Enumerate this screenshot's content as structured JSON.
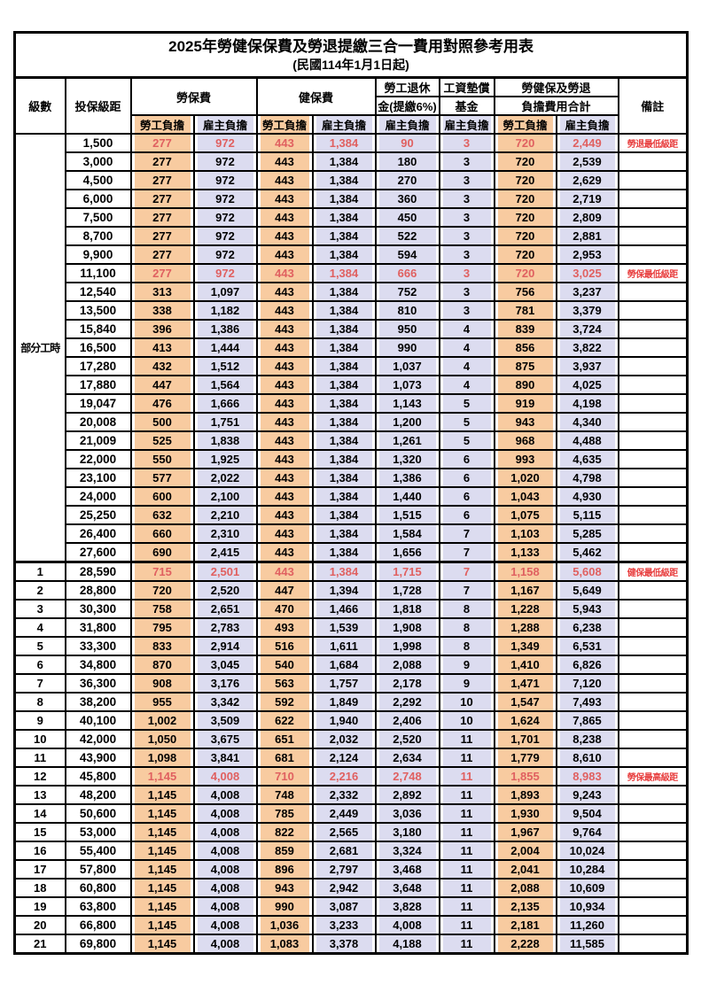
{
  "title": "2025年勞健保保費及勞退提繳三合一費用對照參考用表",
  "subtitle": "(民國114年1月1日起)",
  "colors": {
    "employee_fill": "#F8CBA0",
    "employer_fill": "#DCDCF0",
    "highlight_text": "#E06060",
    "note_text": "#E84040",
    "border": "#000000"
  },
  "header": {
    "level": "級數",
    "bracket": "投保級距",
    "labor_insurance": "勞保費",
    "health_insurance": "健保費",
    "pension_line1": "勞工退休",
    "pension_line2": "金(提繳6%)",
    "wage_fund_line1": "工資墊償",
    "wage_fund_line2": "基金",
    "total_line1": "勞健保及勞退",
    "total_line2": "負擔費用合計",
    "note": "備註",
    "employee_share": "勞工負擔",
    "employer_share": "雇主負擔"
  },
  "part_time": {
    "label": "部分工時",
    "span": 23
  },
  "columns": [
    {
      "key": "labor-insurance-employee",
      "type": "employee"
    },
    {
      "key": "labor-insurance-employer",
      "type": "employer"
    },
    {
      "key": "health-insurance-employee",
      "type": "employee"
    },
    {
      "key": "health-insurance-employer",
      "type": "employer"
    },
    {
      "key": "pension-employer",
      "type": "employer"
    },
    {
      "key": "wage-fund-employer",
      "type": "employer"
    },
    {
      "key": "total-employee",
      "type": "employee"
    },
    {
      "key": "total-employer",
      "type": "employer"
    }
  ],
  "rows": [
    {
      "level": "",
      "bracket": "1,500",
      "values": [
        "277",
        "972",
        "443",
        "1,384",
        "90",
        "3",
        "720",
        "2,449"
      ],
      "note": "勞退最低級距",
      "hl": true
    },
    {
      "level": "",
      "bracket": "3,000",
      "values": [
        "277",
        "972",
        "443",
        "1,384",
        "180",
        "3",
        "720",
        "2,539"
      ],
      "note": "",
      "hl": false
    },
    {
      "level": "",
      "bracket": "4,500",
      "values": [
        "277",
        "972",
        "443",
        "1,384",
        "270",
        "3",
        "720",
        "2,629"
      ],
      "note": "",
      "hl": false
    },
    {
      "level": "",
      "bracket": "6,000",
      "values": [
        "277",
        "972",
        "443",
        "1,384",
        "360",
        "3",
        "720",
        "2,719"
      ],
      "note": "",
      "hl": false
    },
    {
      "level": "",
      "bracket": "7,500",
      "values": [
        "277",
        "972",
        "443",
        "1,384",
        "450",
        "3",
        "720",
        "2,809"
      ],
      "note": "",
      "hl": false
    },
    {
      "level": "",
      "bracket": "8,700",
      "values": [
        "277",
        "972",
        "443",
        "1,384",
        "522",
        "3",
        "720",
        "2,881"
      ],
      "note": "",
      "hl": false
    },
    {
      "level": "",
      "bracket": "9,900",
      "values": [
        "277",
        "972",
        "443",
        "1,384",
        "594",
        "3",
        "720",
        "2,953"
      ],
      "note": "",
      "hl": false
    },
    {
      "level": "",
      "bracket": "11,100",
      "values": [
        "277",
        "972",
        "443",
        "1,384",
        "666",
        "3",
        "720",
        "3,025"
      ],
      "note": "勞保最低級距",
      "hl": true
    },
    {
      "level": "",
      "bracket": "12,540",
      "values": [
        "313",
        "1,097",
        "443",
        "1,384",
        "752",
        "3",
        "756",
        "3,237"
      ],
      "note": "",
      "hl": false
    },
    {
      "level": "",
      "bracket": "13,500",
      "values": [
        "338",
        "1,182",
        "443",
        "1,384",
        "810",
        "3",
        "781",
        "3,379"
      ],
      "note": "",
      "hl": false
    },
    {
      "level": "",
      "bracket": "15,840",
      "values": [
        "396",
        "1,386",
        "443",
        "1,384",
        "950",
        "4",
        "839",
        "3,724"
      ],
      "note": "",
      "hl": false
    },
    {
      "level": "",
      "bracket": "16,500",
      "values": [
        "413",
        "1,444",
        "443",
        "1,384",
        "990",
        "4",
        "856",
        "3,822"
      ],
      "note": "",
      "hl": false
    },
    {
      "level": "",
      "bracket": "17,280",
      "values": [
        "432",
        "1,512",
        "443",
        "1,384",
        "1,037",
        "4",
        "875",
        "3,937"
      ],
      "note": "",
      "hl": false
    },
    {
      "level": "",
      "bracket": "17,880",
      "values": [
        "447",
        "1,564",
        "443",
        "1,384",
        "1,073",
        "4",
        "890",
        "4,025"
      ],
      "note": "",
      "hl": false
    },
    {
      "level": "",
      "bracket": "19,047",
      "values": [
        "476",
        "1,666",
        "443",
        "1,384",
        "1,143",
        "5",
        "919",
        "4,198"
      ],
      "note": "",
      "hl": false
    },
    {
      "level": "",
      "bracket": "20,008",
      "values": [
        "500",
        "1,751",
        "443",
        "1,384",
        "1,200",
        "5",
        "943",
        "4,340"
      ],
      "note": "",
      "hl": false
    },
    {
      "level": "",
      "bracket": "21,009",
      "values": [
        "525",
        "1,838",
        "443",
        "1,384",
        "1,261",
        "5",
        "968",
        "4,488"
      ],
      "note": "",
      "hl": false
    },
    {
      "level": "",
      "bracket": "22,000",
      "values": [
        "550",
        "1,925",
        "443",
        "1,384",
        "1,320",
        "6",
        "993",
        "4,635"
      ],
      "note": "",
      "hl": false
    },
    {
      "level": "",
      "bracket": "23,100",
      "values": [
        "577",
        "2,022",
        "443",
        "1,384",
        "1,386",
        "6",
        "1,020",
        "4,798"
      ],
      "note": "",
      "hl": false
    },
    {
      "level": "",
      "bracket": "24,000",
      "values": [
        "600",
        "2,100",
        "443",
        "1,384",
        "1,440",
        "6",
        "1,043",
        "4,930"
      ],
      "note": "",
      "hl": false
    },
    {
      "level": "",
      "bracket": "25,250",
      "values": [
        "632",
        "2,210",
        "443",
        "1,384",
        "1,515",
        "6",
        "1,075",
        "5,115"
      ],
      "note": "",
      "hl": false
    },
    {
      "level": "",
      "bracket": "26,400",
      "values": [
        "660",
        "2,310",
        "443",
        "1,384",
        "1,584",
        "7",
        "1,103",
        "5,285"
      ],
      "note": "",
      "hl": false
    },
    {
      "level": "",
      "bracket": "27,600",
      "values": [
        "690",
        "2,415",
        "443",
        "1,384",
        "1,656",
        "7",
        "1,133",
        "5,462"
      ],
      "note": "",
      "hl": false
    },
    {
      "level": "1",
      "bracket": "28,590",
      "values": [
        "715",
        "2,501",
        "443",
        "1,384",
        "1,715",
        "7",
        "1,158",
        "5,608"
      ],
      "note": "健保最低級距",
      "hl": true
    },
    {
      "level": "2",
      "bracket": "28,800",
      "values": [
        "720",
        "2,520",
        "447",
        "1,394",
        "1,728",
        "7",
        "1,167",
        "5,649"
      ],
      "note": "",
      "hl": false
    },
    {
      "level": "3",
      "bracket": "30,300",
      "values": [
        "758",
        "2,651",
        "470",
        "1,466",
        "1,818",
        "8",
        "1,228",
        "5,943"
      ],
      "note": "",
      "hl": false
    },
    {
      "level": "4",
      "bracket": "31,800",
      "values": [
        "795",
        "2,783",
        "493",
        "1,539",
        "1,908",
        "8",
        "1,288",
        "6,238"
      ],
      "note": "",
      "hl": false
    },
    {
      "level": "5",
      "bracket": "33,300",
      "values": [
        "833",
        "2,914",
        "516",
        "1,611",
        "1,998",
        "8",
        "1,349",
        "6,531"
      ],
      "note": "",
      "hl": false
    },
    {
      "level": "6",
      "bracket": "34,800",
      "values": [
        "870",
        "3,045",
        "540",
        "1,684",
        "2,088",
        "9",
        "1,410",
        "6,826"
      ],
      "note": "",
      "hl": false
    },
    {
      "level": "7",
      "bracket": "36,300",
      "values": [
        "908",
        "3,176",
        "563",
        "1,757",
        "2,178",
        "9",
        "1,471",
        "7,120"
      ],
      "note": "",
      "hl": false
    },
    {
      "level": "8",
      "bracket": "38,200",
      "values": [
        "955",
        "3,342",
        "592",
        "1,849",
        "2,292",
        "10",
        "1,547",
        "7,493"
      ],
      "note": "",
      "hl": false
    },
    {
      "level": "9",
      "bracket": "40,100",
      "values": [
        "1,002",
        "3,509",
        "622",
        "1,940",
        "2,406",
        "10",
        "1,624",
        "7,865"
      ],
      "note": "",
      "hl": false
    },
    {
      "level": "10",
      "bracket": "42,000",
      "values": [
        "1,050",
        "3,675",
        "651",
        "2,032",
        "2,520",
        "11",
        "1,701",
        "8,238"
      ],
      "note": "",
      "hl": false
    },
    {
      "level": "11",
      "bracket": "43,900",
      "values": [
        "1,098",
        "3,841",
        "681",
        "2,124",
        "2,634",
        "11",
        "1,779",
        "8,610"
      ],
      "note": "",
      "hl": false
    },
    {
      "level": "12",
      "bracket": "45,800",
      "values": [
        "1,145",
        "4,008",
        "710",
        "2,216",
        "2,748",
        "11",
        "1,855",
        "8,983"
      ],
      "note": "勞保最高級距",
      "hl": true
    },
    {
      "level": "13",
      "bracket": "48,200",
      "values": [
        "1,145",
        "4,008",
        "748",
        "2,332",
        "2,892",
        "11",
        "1,893",
        "9,243"
      ],
      "note": "",
      "hl": false
    },
    {
      "level": "14",
      "bracket": "50,600",
      "values": [
        "1,145",
        "4,008",
        "785",
        "2,449",
        "3,036",
        "11",
        "1,930",
        "9,504"
      ],
      "note": "",
      "hl": false
    },
    {
      "level": "15",
      "bracket": "53,000",
      "values": [
        "1,145",
        "4,008",
        "822",
        "2,565",
        "3,180",
        "11",
        "1,967",
        "9,764"
      ],
      "note": "",
      "hl": false
    },
    {
      "level": "16",
      "bracket": "55,400",
      "values": [
        "1,145",
        "4,008",
        "859",
        "2,681",
        "3,324",
        "11",
        "2,004",
        "10,024"
      ],
      "note": "",
      "hl": false
    },
    {
      "level": "17",
      "bracket": "57,800",
      "values": [
        "1,145",
        "4,008",
        "896",
        "2,797",
        "3,468",
        "11",
        "2,041",
        "10,284"
      ],
      "note": "",
      "hl": false
    },
    {
      "level": "18",
      "bracket": "60,800",
      "values": [
        "1,145",
        "4,008",
        "943",
        "2,942",
        "3,648",
        "11",
        "2,088",
        "10,609"
      ],
      "note": "",
      "hl": false
    },
    {
      "level": "19",
      "bracket": "63,800",
      "values": [
        "1,145",
        "4,008",
        "990",
        "3,087",
        "3,828",
        "11",
        "2,135",
        "10,934"
      ],
      "note": "",
      "hl": false
    },
    {
      "level": "20",
      "bracket": "66,800",
      "values": [
        "1,145",
        "4,008",
        "1,036",
        "3,233",
        "4,008",
        "11",
        "2,181",
        "11,260"
      ],
      "note": "",
      "hl": false
    },
    {
      "level": "21",
      "bracket": "69,800",
      "values": [
        "1,145",
        "4,008",
        "1,083",
        "3,378",
        "4,188",
        "11",
        "2,228",
        "11,585"
      ],
      "note": "",
      "hl": false
    }
  ]
}
